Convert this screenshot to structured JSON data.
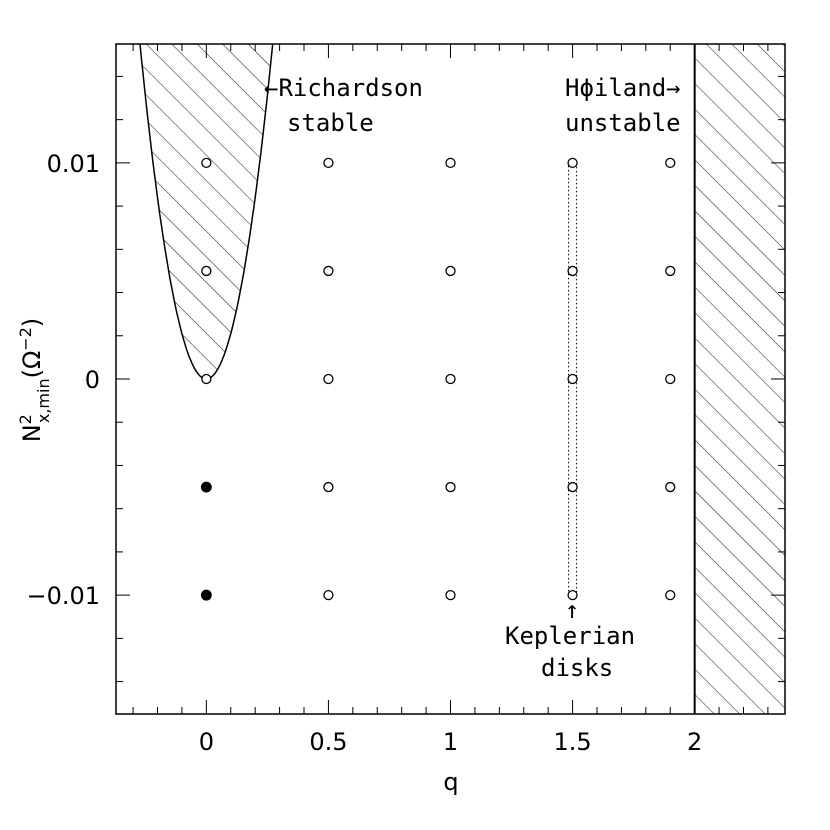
{
  "chart_data": {
    "type": "scatter",
    "xlabel": "q",
    "ylabel_main": "N",
    "ylabel_sup": "2",
    "ylabel_sub": "x,min",
    "ylabel_unit": "(Ω",
    "ylabel_unit_sup": "−2",
    "ylabel_unit_close": ")",
    "xlim": [
      -0.37,
      2.37
    ],
    "ylim": [
      -0.0155,
      0.0155
    ],
    "x_ticks": [
      {
        "value": 0,
        "label": "0"
      },
      {
        "value": 0.5,
        "label": "0.5"
      },
      {
        "value": 1,
        "label": "1"
      },
      {
        "value": 1.5,
        "label": "1.5"
      },
      {
        "value": 2,
        "label": "2"
      }
    ],
    "y_ticks": [
      {
        "value": 0.01,
        "label": "0.01"
      },
      {
        "value": 0,
        "label": "0"
      },
      {
        "value": -0.01,
        "label": "−0.01"
      }
    ],
    "x_minor_step": 0.1,
    "y_minor_step": 0.002,
    "series": [
      {
        "marker": "open-circle",
        "points": [
          [
            0,
            0.01
          ],
          [
            0,
            0.005
          ],
          [
            0,
            0
          ],
          [
            0.5,
            0.01
          ],
          [
            0.5,
            0.005
          ],
          [
            0.5,
            0
          ],
          [
            0.5,
            -0.005
          ],
          [
            0.5,
            -0.01
          ],
          [
            1,
            0.01
          ],
          [
            1,
            0.005
          ],
          [
            1,
            0
          ],
          [
            1,
            -0.005
          ],
          [
            1,
            -0.01
          ],
          [
            1.5,
            0.01
          ],
          [
            1.5,
            0.005
          ],
          [
            1.5,
            0
          ],
          [
            1.5,
            -0.005
          ],
          [
            1.5,
            -0.01
          ],
          [
            1.9,
            0.01
          ],
          [
            1.9,
            0.005
          ],
          [
            1.9,
            0
          ],
          [
            1.9,
            -0.005
          ],
          [
            1.9,
            -0.01
          ]
        ]
      },
      {
        "marker": "filled-circle",
        "points": [
          [
            0,
            -0.005
          ],
          [
            0,
            -0.01
          ]
        ]
      }
    ],
    "regions": [
      {
        "name": "richardson",
        "boundary": "parabola y = 0.21·q²",
        "hatched": true
      },
      {
        "name": "hoiland",
        "boundary": "q ≥ 2",
        "hatched": true
      }
    ],
    "keplerian_box": {
      "x": 1.5,
      "y_range": [
        -0.01,
        0.01
      ],
      "style": "dotted"
    },
    "annotations": {
      "richardson_line1": "←Richardson",
      "richardson_line2": "stable",
      "hoiland_line1": "Hϕiland→",
      "hoiland_line2": "unstable",
      "keplerian_arrow": "↑",
      "keplerian_line1": "Keplerian",
      "keplerian_line2": "disks"
    },
    "colors": {
      "axis": "#000000",
      "marker": "#000000",
      "hatch": "#000000"
    }
  }
}
